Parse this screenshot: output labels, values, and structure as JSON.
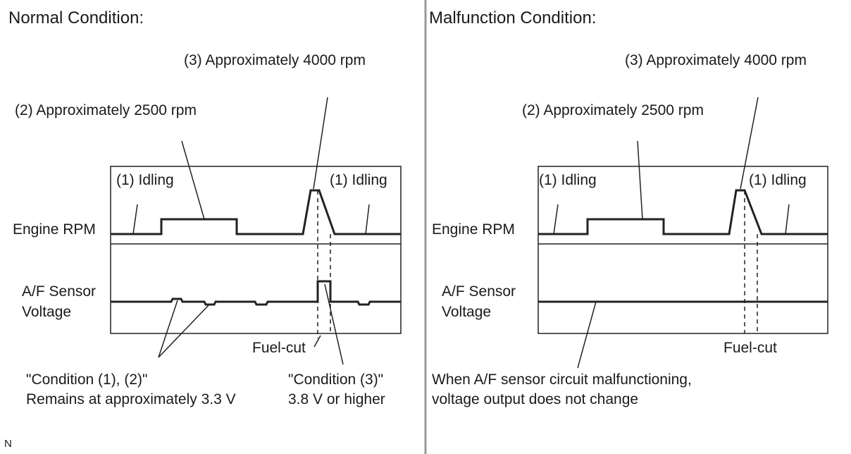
{
  "normal": {
    "title": "Normal Condition:",
    "rpm_4000_label": "(3) Approximately 4000 rpm",
    "rpm_2500_label": "(2) Approximately 2500 rpm",
    "idling_left_label": "(1) Idling",
    "idling_right_label": "(1) Idling",
    "engine_rpm_label": "Engine RPM",
    "af_sensor_label_line1": "A/F Sensor",
    "af_sensor_label_line2": "Voltage",
    "fuel_cut_label": "Fuel-cut",
    "condition12_line1": "\"Condition (1), (2)\"",
    "condition12_line2": "Remains at approximately 3.3 V",
    "condition3_line1": "\"Condition (3)\"",
    "condition3_line2": "3.8 V or higher"
  },
  "malfunction": {
    "title": "Malfunction Condition:",
    "rpm_4000_label": "(3) Approximately 4000 rpm",
    "rpm_2500_label": "(2) Approximately 2500 rpm",
    "idling_left_label": "(1) Idling",
    "idling_right_label": "(1) Idling",
    "engine_rpm_label": "Engine RPM",
    "af_sensor_label_line1": "A/F Sensor",
    "af_sensor_label_line2": "Voltage",
    "fuel_cut_label": "Fuel-cut",
    "note_line1": "When A/F sensor circuit malfunctioning,",
    "note_line2": "voltage output does not change"
  },
  "corner_mark": "N"
}
